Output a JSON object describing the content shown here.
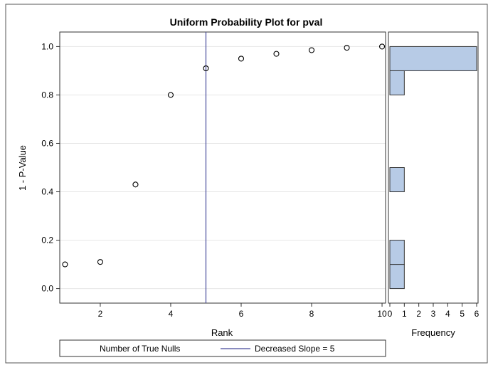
{
  "chart_data": [
    {
      "type": "scatter",
      "title": "Uniform Probability Plot for pval",
      "xlabel": "Rank",
      "ylabel": "1 - P-Value",
      "xlim": [
        0.85,
        10.1
      ],
      "ylim": [
        -0.06,
        1.06
      ],
      "xticks": [
        2,
        4,
        6,
        8,
        10
      ],
      "yticks": [
        0.0,
        0.2,
        0.4,
        0.6,
        0.8,
        1.0
      ],
      "xtick_labels": [
        "2",
        "4",
        "6",
        "8",
        "10"
      ],
      "ytick_labels": [
        "0.0",
        "0.2",
        "0.4",
        "0.6",
        "0.8",
        "1.0"
      ],
      "grid": "horizontal",
      "points": [
        {
          "x": 1,
          "y": 0.1
        },
        {
          "x": 2,
          "y": 0.11
        },
        {
          "x": 3,
          "y": 0.43
        },
        {
          "x": 4,
          "y": 0.8
        },
        {
          "x": 5,
          "y": 0.91
        },
        {
          "x": 6,
          "y": 0.95
        },
        {
          "x": 7,
          "y": 0.97
        },
        {
          "x": 8,
          "y": 0.985
        },
        {
          "x": 9,
          "y": 0.995
        },
        {
          "x": 10,
          "y": 1.0
        }
      ],
      "reference_line": {
        "x": 5
      }
    },
    {
      "type": "bar",
      "orientation": "horizontal",
      "xlabel": "Frequency",
      "xlim": [
        0,
        6
      ],
      "xticks": [
        0,
        1,
        2,
        3,
        4,
        5,
        6
      ],
      "xtick_labels": [
        "0",
        "1",
        "2",
        "3",
        "4",
        "5",
        "6"
      ],
      "bins": [
        {
          "from": 0.0,
          "to": 0.1,
          "count": 1
        },
        {
          "from": 0.1,
          "to": 0.2,
          "count": 1
        },
        {
          "from": 0.4,
          "to": 0.5,
          "count": 1
        },
        {
          "from": 0.8,
          "to": 0.9,
          "count": 1
        },
        {
          "from": 0.9,
          "to": 1.0,
          "count": 6
        }
      ],
      "bar_color": "#b7cbe6"
    }
  ],
  "legend": {
    "title": "Number of True Nulls",
    "entry": "Decreased Slope = 5",
    "line_color": "#44479a"
  },
  "colors": {
    "reference_line": "#44479a",
    "bar_fill": "#b7cbe6",
    "grid": "#e6e6e6"
  }
}
